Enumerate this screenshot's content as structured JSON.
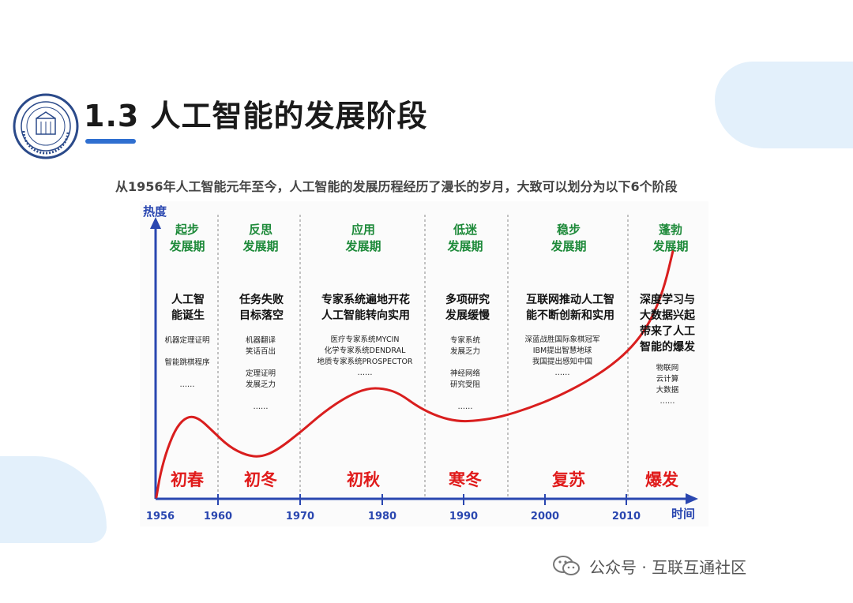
{
  "header": {
    "title": "1.3 人工智能的发展阶段",
    "subtitle": "从1956年人工智能元年至今，人工智能的发展历程经历了漫长的岁月，大致可以划分为以下6个阶段"
  },
  "diagram": {
    "y_axis_label": "热度",
    "x_axis_label": "时间",
    "years": [
      "1956",
      "1960",
      "1970",
      "1980",
      "1990",
      "2000",
      "2010"
    ],
    "periods": [
      {
        "name": "起步\n发展期",
        "event": "人工智\n能诞生",
        "details": "机器定理证明\n\n智能跳棋程序\n\n……",
        "season": "初春"
      },
      {
        "name": "反思\n发展期",
        "event": "任务失败\n目标落空",
        "details": "机器翻译\n笑话百出\n\n定理证明\n发展乏力\n\n……",
        "season": "初冬"
      },
      {
        "name": "应用\n发展期",
        "event": "专家系统遍地开花\n人工智能转向实用",
        "details": "医疗专家系统MYCIN\n化学专家系统DENDRAL\n地质专家系统PROSPECTOR\n……",
        "season": "初秋"
      },
      {
        "name": "低迷\n发展期",
        "event": "多项研究\n发展缓慢",
        "details": "专家系统\n发展乏力\n\n神经网络\n研究受阻\n\n……",
        "season": "寒冬"
      },
      {
        "name": "稳步\n发展期",
        "event": "互联网推动人工智\n能不断创新和实用",
        "details": "深蓝战胜国际象棋冠军\nIBM提出智慧地球\n我国提出感知中国\n……",
        "season": "复苏"
      },
      {
        "name": "蓬勃\n发展期",
        "event": "深度学习与\n大数据兴起\n带来了人工\n智能的爆发",
        "details": "物联网\n云计算\n大数据\n……",
        "season": "爆发"
      }
    ]
  },
  "watermark": "公众号 · 互联互通社区",
  "colors": {
    "accent_blue": "#2f6fd0",
    "axis_blue": "#2a47b0",
    "curve_red": "#d91e1e",
    "period_green": "#1e8a3a",
    "season_red": "#e01b1b"
  }
}
